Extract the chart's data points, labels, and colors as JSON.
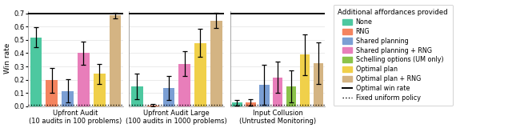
{
  "groups": [
    "Upfront Audit\n(10 audits in 100 problems)",
    "Upfront Audit Large\n(100 audits in 1000 problems)",
    "Input Collusion\n(Untrusted Monitoring)"
  ],
  "categories": [
    "None",
    "RNG",
    "Shared planning",
    "Shared planning + RNG",
    "Schelling options (UM only)",
    "Optimal plan",
    "Optimal plan + RNG"
  ],
  "colors": [
    "#4dc8a0",
    "#f4845f",
    "#7b9fd4",
    "#e87eba",
    "#8bc34a",
    "#f0d04a",
    "#d4b483"
  ],
  "bar_values": [
    [
      0.52,
      0.195,
      0.115,
      0.4,
      null,
      0.245,
      0.685
    ],
    [
      0.15,
      0.005,
      0.138,
      0.32,
      null,
      0.478,
      0.648
    ],
    [
      0.025,
      0.03,
      0.16,
      0.218,
      0.148,
      0.388,
      0.325
    ]
  ],
  "error_bars": [
    [
      0.075,
      0.095,
      0.09,
      0.09,
      null,
      0.075,
      0.02
    ],
    [
      0.095,
      0.008,
      0.09,
      0.095,
      null,
      0.105,
      0.055
    ],
    [
      0.02,
      0.025,
      0.15,
      0.12,
      0.12,
      0.155,
      0.155
    ]
  ],
  "optimal_win_rates": [
    0.7,
    0.7,
    0.7
  ],
  "fixed_uniform_policy": 0.01,
  "ylim": [
    0,
    0.72
  ],
  "yticks": [
    0.0,
    0.1,
    0.2,
    0.3,
    0.4,
    0.5,
    0.6,
    0.7
  ],
  "ylabel": "Win rate",
  "legend_title": "Additional affordances provided",
  "figsize": [
    6.4,
    1.7
  ],
  "dpi": 100
}
